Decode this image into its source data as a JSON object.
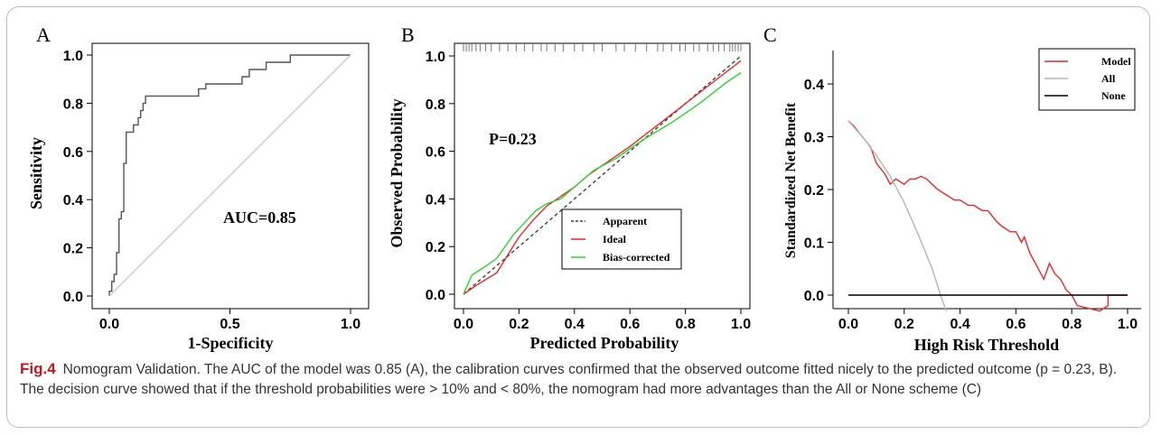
{
  "caption": {
    "fig_label": "Fig.4",
    "text": "Nomogram Validation. The AUC of the model was 0.85 (A), the calibration curves confirmed that the observed outcome fitted nicely to the predicted outcome (p = 0.23, B). The decision curve showed that if the threshold probabilities were > 10% and < 80%, the nomogram had more advantages than the All or None scheme (C)"
  },
  "chart_data": [
    {
      "panel": "A",
      "type": "line",
      "xlabel": "1-Specificity",
      "ylabel": "Sensitivity",
      "xlim": [
        0,
        1
      ],
      "ylim": [
        0,
        1
      ],
      "xticks": [
        "0.0",
        "0.5",
        "1.0"
      ],
      "yticks": [
        "0.0",
        "0.2",
        "0.4",
        "0.6",
        "0.8",
        "1.0"
      ],
      "annotation": "AUC=0.85",
      "grid": false,
      "series": [
        {
          "color": "#555555",
          "x": [
            0,
            0,
            0.01,
            0.01,
            0.02,
            0.02,
            0.03,
            0.03,
            0.04,
            0.04,
            0.05,
            0.05,
            0.06,
            0.06,
            0.07,
            0.07,
            0.1,
            0.1,
            0.12,
            0.12,
            0.13,
            0.13,
            0.14,
            0.14,
            0.15,
            0.15,
            0.16,
            0.16,
            0.37,
            0.37,
            0.4,
            0.4,
            0.44,
            0.44,
            0.55,
            0.55,
            0.58,
            0.58,
            0.62,
            0.62,
            0.65,
            0.65,
            0.75,
            0.75,
            1.0
          ],
          "y": [
            0,
            0.02,
            0.02,
            0.06,
            0.06,
            0.09,
            0.09,
            0.18,
            0.18,
            0.32,
            0.32,
            0.35,
            0.35,
            0.55,
            0.55,
            0.68,
            0.68,
            0.71,
            0.71,
            0.74,
            0.74,
            0.77,
            0.77,
            0.8,
            0.8,
            0.83,
            0.83,
            0.83,
            0.83,
            0.86,
            0.86,
            0.88,
            0.88,
            0.88,
            0.88,
            0.91,
            0.91,
            0.94,
            0.94,
            0.94,
            0.94,
            0.97,
            0.97,
            1.0,
            1.0
          ]
        },
        {
          "color": "#cccccc",
          "x": [
            0,
            1
          ],
          "y": [
            0,
            1
          ]
        }
      ]
    },
    {
      "panel": "B",
      "type": "line",
      "xlabel": "Predicted Probability",
      "ylabel": "Observed Probability",
      "xlim": [
        0,
        1
      ],
      "ylim": [
        0,
        1
      ],
      "xticks": [
        "0.0",
        "0.2",
        "0.4",
        "0.6",
        "0.8",
        "1.0"
      ],
      "yticks": [
        "0.0",
        "0.2",
        "0.4",
        "0.6",
        "0.8",
        "1.0"
      ],
      "annotation": "P=0.23",
      "legend_position": "bottom-right",
      "grid": false,
      "series": [
        {
          "name": "Apparent",
          "color": "#444444",
          "dash": true,
          "x": [
            0,
            1
          ],
          "y": [
            0,
            1
          ]
        },
        {
          "name": "Ideal",
          "color": "#e8262b",
          "x": [
            0,
            0.05,
            0.12,
            0.2,
            0.25,
            0.3,
            0.35,
            0.4,
            0.45,
            0.5,
            0.6,
            0.7,
            0.8,
            0.9,
            1.0
          ],
          "y": [
            0,
            0.04,
            0.09,
            0.24,
            0.31,
            0.37,
            0.41,
            0.45,
            0.5,
            0.54,
            0.62,
            0.71,
            0.8,
            0.89,
            0.98
          ]
        },
        {
          "name": "Bias-corrected",
          "color": "#2fd12f",
          "x": [
            0,
            0.03,
            0.07,
            0.12,
            0.18,
            0.22,
            0.26,
            0.3,
            0.35,
            0.4,
            0.47,
            0.55,
            0.65,
            0.75,
            0.85,
            0.95,
            1.0
          ],
          "y": [
            0,
            0.08,
            0.11,
            0.15,
            0.25,
            0.3,
            0.35,
            0.38,
            0.4,
            0.45,
            0.52,
            0.57,
            0.65,
            0.72,
            0.8,
            0.89,
            0.93
          ]
        }
      ],
      "rug": [
        0.0,
        0.01,
        0.02,
        0.03,
        0.045,
        0.06,
        0.08,
        0.1,
        0.13,
        0.16,
        0.19,
        0.22,
        0.25,
        0.28,
        0.3,
        0.33,
        0.36,
        0.4,
        0.43,
        0.47,
        0.5,
        0.55,
        0.58,
        0.62,
        0.66,
        0.7,
        0.72,
        0.75,
        0.78,
        0.8,
        0.83,
        0.85,
        0.88,
        0.9,
        0.92,
        0.94,
        0.96,
        0.97,
        0.98,
        0.99,
        1.0
      ]
    },
    {
      "panel": "C",
      "type": "line",
      "xlabel": "High Risk Threshold",
      "ylabel": "Standardized Net Benefit",
      "xlim": [
        0,
        1
      ],
      "ylim": [
        0,
        0.4
      ],
      "xticks": [
        "0.0",
        "0.2",
        "0.4",
        "0.6",
        "0.8",
        "1.0"
      ],
      "yticks": [
        "0.0",
        "0.1",
        "0.2",
        "0.3",
        "0.4"
      ],
      "legend_position": "top-right",
      "grid": false,
      "series": [
        {
          "name": "Model",
          "color": "#e8262b",
          "x": [
            0,
            0.02,
            0.05,
            0.08,
            0.1,
            0.13,
            0.15,
            0.17,
            0.2,
            0.22,
            0.24,
            0.26,
            0.28,
            0.3,
            0.32,
            0.35,
            0.38,
            0.4,
            0.43,
            0.45,
            0.48,
            0.5,
            0.53,
            0.55,
            0.58,
            0.6,
            0.62,
            0.63,
            0.65,
            0.67,
            0.7,
            0.72,
            0.74,
            0.76,
            0.78,
            0.8,
            0.82,
            0.9,
            0.93,
            0.93,
            1.0
          ],
          "y": [
            0.33,
            0.32,
            0.3,
            0.28,
            0.25,
            0.23,
            0.21,
            0.22,
            0.21,
            0.22,
            0.22,
            0.225,
            0.22,
            0.21,
            0.2,
            0.19,
            0.18,
            0.18,
            0.17,
            0.17,
            0.16,
            0.16,
            0.14,
            0.13,
            0.12,
            0.12,
            0.1,
            0.11,
            0.08,
            0.06,
            0.03,
            0.06,
            0.04,
            0.03,
            0.01,
            0.0,
            -0.02,
            -0.03,
            -0.02,
            0.0,
            0.0
          ]
        },
        {
          "name": "All",
          "color": "#b5b5b5",
          "x": [
            0,
            0.05,
            0.1,
            0.15,
            0.2,
            0.25,
            0.3,
            0.33,
            0.35
          ],
          "y": [
            0.33,
            0.3,
            0.265,
            0.225,
            0.175,
            0.115,
            0.05,
            0.0,
            -0.03
          ]
        },
        {
          "name": "None",
          "color": "#000000",
          "x": [
            0,
            1
          ],
          "y": [
            0,
            0
          ]
        }
      ]
    }
  ],
  "panel_labels": {
    "a": "A",
    "b": "B",
    "c": "C"
  }
}
